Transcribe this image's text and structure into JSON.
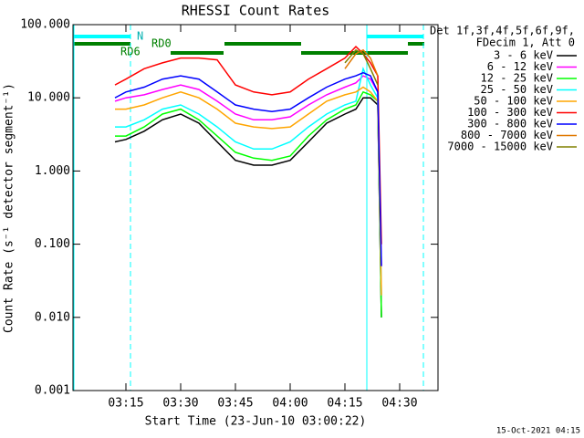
{
  "chart_data": {
    "type": "line",
    "title": "RHESSI Count Rates",
    "xlabel": "Start Time (23-Jun-10 03:00:22)",
    "ylabel": "Count Rate (s⁻¹ detector segment⁻¹)",
    "legend_title": [
      "Det 1f,3f,4f,5f,6f,9f,",
      "FDecim 1, Att 0"
    ],
    "annotations": [
      "N",
      "RD0",
      "RD6"
    ],
    "footer": "15-Oct-2021 04:15",
    "log_y": true,
    "legend": "outside-right",
    "xlim": [
      0.5,
      100.5
    ],
    "xticks": [
      {
        "value": 15,
        "label": "03:15"
      },
      {
        "value": 30,
        "label": "03:30"
      },
      {
        "value": 45,
        "label": "03:45"
      },
      {
        "value": 60,
        "label": "04:00"
      },
      {
        "value": 75,
        "label": "04:15"
      },
      {
        "value": 90,
        "label": "04:30"
      }
    ],
    "ylim": [
      0.001,
      100
    ],
    "yticks": [
      0.001,
      {
        "value": 0.01,
        "label": "0.010"
      },
      {
        "value": 0.1,
        "label": "0.100"
      },
      {
        "value": 1,
        "label": "1.000"
      },
      {
        "value": 10,
        "label": "10.000"
      },
      {
        "value": 100,
        "label": "100.000"
      }
    ],
    "x": [
      12,
      15,
      20,
      25,
      30,
      35,
      40,
      45,
      50,
      55,
      60,
      65,
      70,
      75,
      78,
      80,
      82,
      84,
      85
    ],
    "series": [
      {
        "name": "3 - 6 keV",
        "color": "#000000",
        "values": [
          2.5,
          2.7,
          3.5,
          5,
          6,
          4.5,
          2.5,
          1.4,
          1.2,
          1.2,
          1.4,
          2.5,
          4.5,
          6,
          7,
          10,
          10,
          8,
          0.01
        ]
      },
      {
        "name": "6 - 12 keV",
        "color": "#ff00ff",
        "values": [
          9,
          10,
          11,
          13,
          15,
          13,
          9,
          6,
          5,
          5,
          5.5,
          8,
          11,
          14,
          16,
          20,
          18,
          12,
          0.05
        ]
      },
      {
        "name": "12 - 25 keV",
        "color": "#00ff00",
        "values": [
          3,
          3,
          4,
          6,
          7,
          5,
          3,
          1.8,
          1.5,
          1.4,
          1.6,
          3,
          5,
          7,
          8,
          12,
          11,
          9,
          0.01
        ]
      },
      {
        "name": "25 - 50 keV",
        "color": "#00ffff",
        "values": [
          4,
          4,
          5,
          7,
          8,
          6,
          4,
          2.5,
          2,
          2,
          2.5,
          4,
          6,
          8,
          9,
          25,
          15,
          10,
          0.02
        ]
      },
      {
        "name": "50 - 100 keV",
        "color": "#ffa500",
        "values": [
          7,
          7,
          8,
          10,
          12,
          10,
          7,
          4.5,
          4,
          3.8,
          4,
          6,
          9,
          11,
          12,
          14,
          12,
          9,
          0.02
        ]
      },
      {
        "name": "100 - 300 keV",
        "color": "#ff0000",
        "values": [
          15,
          18,
          25,
          30,
          35,
          35,
          33,
          15,
          12,
          11,
          12,
          18,
          25,
          35,
          50,
          40,
          30,
          20,
          0.1
        ]
      },
      {
        "name": "300 - 800 keV",
        "color": "#0000ff",
        "values": [
          10,
          12,
          14,
          18,
          20,
          18,
          12,
          8,
          7,
          6.5,
          7,
          10,
          14,
          18,
          20,
          22,
          20,
          12,
          0.05
        ]
      },
      {
        "name": "800 - 7000 keV",
        "color": "#e07800",
        "values": [
          null,
          null,
          null,
          null,
          null,
          null,
          null,
          null,
          null,
          null,
          null,
          null,
          null,
          25,
          40,
          45,
          35,
          20,
          null
        ]
      },
      {
        "name": "7000 - 15000 keV",
        "color": "#808000",
        "values": [
          null,
          null,
          null,
          null,
          null,
          null,
          null,
          null,
          null,
          null,
          null,
          null,
          null,
          30,
          45,
          40,
          25,
          15,
          null
        ]
      }
    ]
  }
}
